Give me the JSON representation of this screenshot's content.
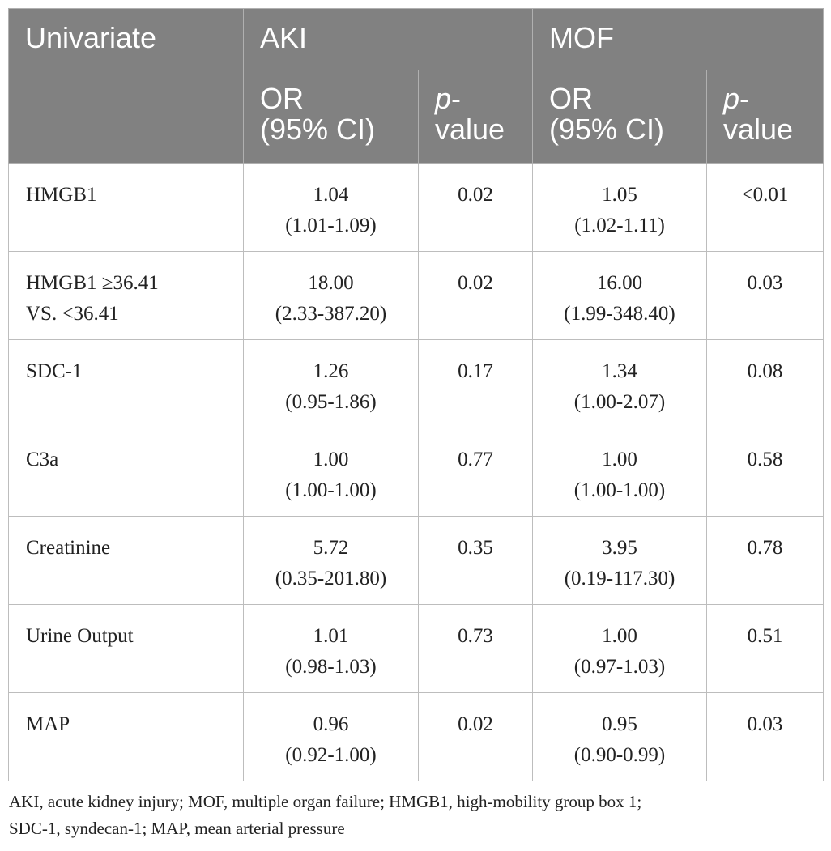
{
  "header": {
    "univariate": "Univariate",
    "aki": "AKI",
    "mof": "MOF",
    "or_line1": "OR",
    "or_line2": "(95% CI)",
    "p_line1_italic": "p",
    "p_line1_dash": "-",
    "p_line2": "value"
  },
  "rows": [
    {
      "name1": "HMGB1",
      "name2": "",
      "aki_or": "1.04",
      "aki_ci": "(1.01-1.09)",
      "aki_p": "0.02",
      "mof_or": "1.05",
      "mof_ci": "(1.02-1.11)",
      "mof_p": "<0.01"
    },
    {
      "name1": "HMGB1 ≥36.41",
      "name2": "VS. <36.41",
      "aki_or": "18.00",
      "aki_ci": "(2.33-387.20)",
      "aki_p": "0.02",
      "mof_or": "16.00",
      "mof_ci": "(1.99-348.40)",
      "mof_p": "0.03"
    },
    {
      "name1": "SDC-1",
      "name2": "",
      "aki_or": "1.26",
      "aki_ci": "(0.95-1.86)",
      "aki_p": "0.17",
      "mof_or": "1.34",
      "mof_ci": "(1.00-2.07)",
      "mof_p": "0.08"
    },
    {
      "name1": "C3a",
      "name2": "",
      "aki_or": "1.00",
      "aki_ci": "(1.00-1.00)",
      "aki_p": "0.77",
      "mof_or": "1.00",
      "mof_ci": "(1.00-1.00)",
      "mof_p": "0.58"
    },
    {
      "name1": "Creatinine",
      "name2": "",
      "aki_or": "5.72",
      "aki_ci": "(0.35-201.80)",
      "aki_p": "0.35",
      "mof_or": "3.95",
      "mof_ci": "(0.19-117.30)",
      "mof_p": "0.78"
    },
    {
      "name1": "Urine Output",
      "name2": "",
      "aki_or": "1.01",
      "aki_ci": "(0.98-1.03)",
      "aki_p": "0.73",
      "mof_or": "1.00",
      "mof_ci": "(0.97-1.03)",
      "mof_p": "0.51"
    },
    {
      "name1": "MAP",
      "name2": "",
      "aki_or": "0.96",
      "aki_ci": "(0.92-1.00)",
      "aki_p": "0.02",
      "mof_or": "0.95",
      "mof_ci": "(0.90-0.99)",
      "mof_p": "0.03"
    }
  ],
  "footnote": {
    "line1": "AKI, acute kidney injury; MOF, multiple organ failure; HMGB1, high-mobility group box 1;",
    "line2": "SDC-1, syndecan-1; MAP, mean arterial pressure"
  },
  "colors": {
    "header_bg": "#818181",
    "header_text": "#ffffff",
    "grid": "#bdbdbd"
  }
}
